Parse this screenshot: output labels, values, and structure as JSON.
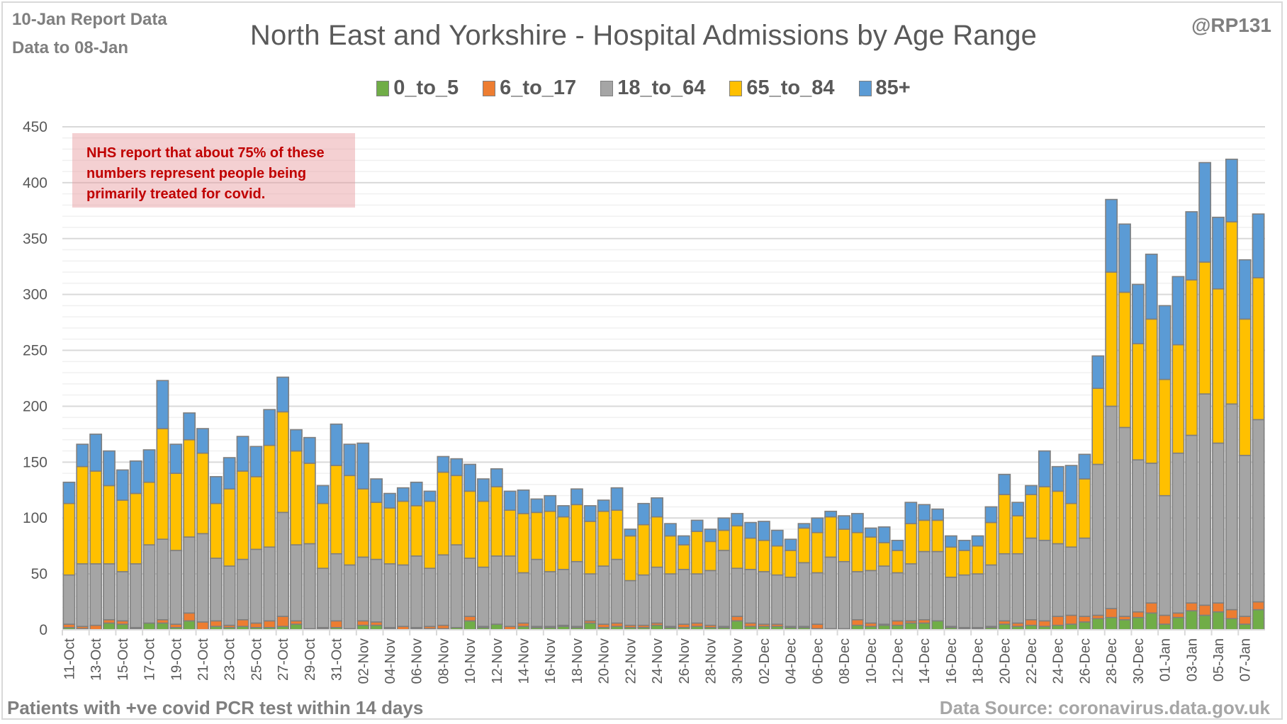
{
  "header": {
    "report_line": "10-Jan Report Data",
    "data_to": "Data to 08-Jan",
    "handle": "@RP131"
  },
  "annotation": {
    "lines": [
      "NHS report that about 75% of these",
      "numbers represent people being",
      "primarily treated for covid."
    ]
  },
  "footer": {
    "left": "Patients with  +ve covid PCR test within 14 days",
    "right": "Data Source: coronavirus.data.gov.uk"
  },
  "chart_data": {
    "type": "bar",
    "stacked": true,
    "title": "North East and Yorkshire - Hospital Admissions by Age Range",
    "xlabel": "",
    "ylabel": "",
    "ylim": [
      0,
      450
    ],
    "yticks": [
      0,
      50,
      100,
      150,
      200,
      250,
      300,
      350,
      400,
      450
    ],
    "grid": true,
    "legend_position": "top-center",
    "x_tick_labels_every": 2,
    "categories": [
      "11-Oct",
      "12-Oct",
      "13-Oct",
      "14-Oct",
      "15-Oct",
      "16-Oct",
      "17-Oct",
      "18-Oct",
      "19-Oct",
      "20-Oct",
      "21-Oct",
      "22-Oct",
      "23-Oct",
      "24-Oct",
      "25-Oct",
      "26-Oct",
      "27-Oct",
      "28-Oct",
      "29-Oct",
      "30-Oct",
      "31-Oct",
      "01-Nov",
      "02-Nov",
      "03-Nov",
      "04-Nov",
      "05-Nov",
      "06-Nov",
      "07-Nov",
      "08-Nov",
      "09-Nov",
      "10-Nov",
      "11-Nov",
      "12-Nov",
      "13-Nov",
      "14-Nov",
      "15-Nov",
      "16-Nov",
      "17-Nov",
      "18-Nov",
      "19-Nov",
      "20-Nov",
      "21-Nov",
      "22-Nov",
      "23-Nov",
      "24-Nov",
      "25-Nov",
      "26-Nov",
      "27-Nov",
      "28-Nov",
      "29-Nov",
      "30-Nov",
      "01-Dec",
      "02-Dec",
      "03-Dec",
      "04-Dec",
      "05-Dec",
      "06-Dec",
      "07-Dec",
      "08-Dec",
      "09-Dec",
      "10-Dec",
      "11-Dec",
      "12-Dec",
      "13-Dec",
      "14-Dec",
      "15-Dec",
      "16-Dec",
      "17-Dec",
      "18-Dec",
      "19-Dec",
      "20-Dec",
      "21-Dec",
      "22-Dec",
      "23-Dec",
      "24-Dec",
      "25-Dec",
      "26-Dec",
      "27-Dec",
      "28-Dec",
      "29-Dec",
      "30-Dec",
      "31-Dec",
      "01-Jan",
      "02-Jan",
      "03-Jan",
      "04-Jan",
      "05-Jan",
      "06-Jan",
      "07-Jan",
      "08-Jan"
    ],
    "series": [
      {
        "name": "0_to_5",
        "color": "#70ad47",
        "values": [
          2,
          1,
          0,
          6,
          5,
          1,
          6,
          6,
          2,
          8,
          0,
          3,
          2,
          3,
          2,
          2,
          3,
          5,
          1,
          1,
          2,
          1,
          4,
          4,
          1,
          0,
          1,
          1,
          1,
          2,
          8,
          2,
          5,
          0,
          3,
          2,
          2,
          3,
          2,
          6,
          2,
          3,
          2,
          2,
          4,
          2,
          2,
          3,
          2,
          2,
          8,
          3,
          3,
          3,
          2,
          2,
          1,
          1,
          1,
          4,
          3,
          4,
          4,
          6,
          6,
          8,
          2,
          1,
          1,
          2,
          5,
          3,
          4,
          3,
          4,
          5,
          7,
          10,
          11,
          9,
          11,
          15,
          5,
          11,
          17,
          13,
          16,
          10,
          5,
          18
        ]
      },
      {
        "name": "6_to_17",
        "color": "#ed7d31",
        "values": [
          3,
          2,
          4,
          3,
          3,
          1,
          0,
          3,
          3,
          7,
          7,
          5,
          2,
          6,
          4,
          6,
          9,
          3,
          0,
          1,
          6,
          0,
          4,
          3,
          1,
          3,
          1,
          2,
          3,
          0,
          4,
          1,
          0,
          3,
          3,
          1,
          1,
          1,
          1,
          2,
          3,
          3,
          2,
          2,
          2,
          1,
          3,
          3,
          2,
          1,
          4,
          3,
          2,
          2,
          1,
          1,
          4,
          0,
          0,
          5,
          3,
          1,
          4,
          2,
          3,
          0,
          1,
          1,
          1,
          1,
          3,
          3,
          5,
          5,
          8,
          8,
          5,
          3,
          8,
          3,
          5,
          9,
          8,
          4,
          7,
          9,
          8,
          8,
          7,
          7
        ]
      },
      {
        "name": "18_to_64",
        "color": "#a5a5a5",
        "values": [
          44,
          56,
          55,
          50,
          44,
          57,
          70,
          72,
          66,
          68,
          79,
          56,
          53,
          54,
          66,
          66,
          93,
          68,
          76,
          53,
          60,
          57,
          57,
          56,
          57,
          55,
          64,
          52,
          63,
          74,
          52,
          53,
          61,
          63,
          45,
          60,
          49,
          50,
          58,
          42,
          52,
          57,
          40,
          45,
          50,
          47,
          49,
          44,
          49,
          68,
          43,
          48,
          47,
          44,
          44,
          57,
          46,
          64,
          60,
          43,
          47,
          52,
          43,
          51,
          61,
          62,
          44,
          47,
          48,
          55,
          60,
          62,
          73,
          72,
          65,
          61,
          70,
          135,
          181,
          169,
          136,
          125,
          107,
          143,
          150,
          189,
          143,
          184,
          144,
          163
        ]
      },
      {
        "name": "65_to_84",
        "color": "#ffc000",
        "values": [
          64,
          87,
          83,
          70,
          64,
          63,
          56,
          99,
          69,
          87,
          72,
          49,
          69,
          79,
          65,
          91,
          90,
          84,
          72,
          58,
          79,
          80,
          61,
          51,
          50,
          57,
          45,
          60,
          74,
          62,
          60,
          59,
          62,
          41,
          53,
          42,
          54,
          47,
          51,
          47,
          49,
          44,
          40,
          45,
          45,
          34,
          22,
          38,
          26,
          18,
          38,
          28,
          28,
          26,
          24,
          31,
          36,
          36,
          29,
          35,
          30,
          21,
          20,
          36,
          28,
          28,
          27,
          22,
          25,
          38,
          53,
          34,
          39,
          48,
          47,
          39,
          53,
          68,
          120,
          121,
          104,
          129,
          104,
          97,
          139,
          118,
          138,
          163,
          122,
          127
        ]
      },
      {
        "name": "85+",
        "color": "#5b9bd5",
        "values": [
          19,
          20,
          33,
          31,
          27,
          29,
          29,
          43,
          26,
          24,
          22,
          24,
          28,
          31,
          27,
          32,
          31,
          19,
          23,
          16,
          37,
          28,
          41,
          21,
          13,
          12,
          21,
          9,
          14,
          15,
          24,
          20,
          16,
          17,
          21,
          12,
          14,
          10,
          14,
          14,
          10,
          20,
          6,
          19,
          17,
          11,
          8,
          10,
          11,
          11,
          11,
          14,
          17,
          14,
          10,
          4,
          13,
          5,
          12,
          17,
          8,
          14,
          9,
          19,
          14,
          10,
          10,
          9,
          9,
          14,
          18,
          12,
          8,
          32,
          22,
          34,
          22,
          29,
          65,
          61,
          53,
          58,
          66,
          61,
          61,
          89,
          64,
          56,
          53,
          57
        ]
      }
    ]
  }
}
